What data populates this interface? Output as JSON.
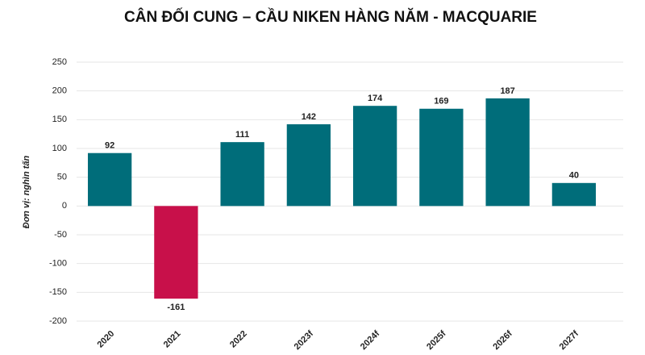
{
  "chart_data": {
    "type": "bar",
    "title": "CÂN ĐỐI CUNG – CẦU NIKEN HÀNG NĂM - MACQUARIE",
    "y_label": "Đơn vị: nghìn tấn",
    "categories": [
      "2020",
      "2021",
      "2022",
      "2023f",
      "2024f",
      "2025f",
      "2026f",
      "2027f"
    ],
    "values": [
      92,
      -161,
      111,
      142,
      174,
      169,
      187,
      40
    ],
    "colors": [
      "#006d7a",
      "#c8104a",
      "#006d7a",
      "#006d7a",
      "#006d7a",
      "#006d7a",
      "#006d7a",
      "#006d7a"
    ],
    "ylim": [
      -200,
      250
    ],
    "yticks": [
      -200,
      -150,
      -100,
      -50,
      0,
      50,
      100,
      150,
      200,
      250
    ],
    "grid": true
  }
}
